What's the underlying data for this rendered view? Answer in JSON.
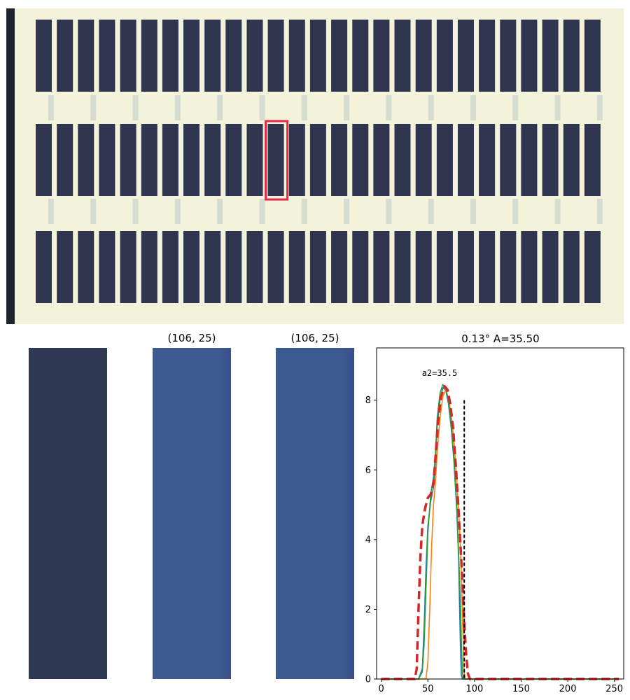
{
  "scan": {
    "plate_color": "#f3f2da",
    "well_color": "#2f344f",
    "selection_color": "#e8264a",
    "selection": {
      "row": 2,
      "column": 12
    },
    "rows": 3,
    "columns": 27
  },
  "panels": {
    "crop_raw": {
      "color": "#2e3853"
    },
    "crop_a": {
      "title": "(106, 25)",
      "color": "#3d5b8f"
    },
    "crop_b": {
      "title": "(106, 25)",
      "color": "#3b5a8e"
    }
  },
  "chart_data": {
    "type": "line",
    "title": "0.13° A=35.50",
    "annotation": "a2=35.5",
    "xlim": [
      -5,
      260
    ],
    "ylim": [
      0,
      9.5
    ],
    "xticks": [
      0,
      50,
      100,
      150,
      200,
      250
    ],
    "yticks": [
      0,
      2,
      4,
      6,
      8
    ],
    "vline": {
      "x": 89,
      "y_top": 8.0,
      "color": "#000000",
      "style": "dashed"
    },
    "series": [
      {
        "color": "#1f77b4",
        "style": "solid",
        "points": [
          [
            0,
            0
          ],
          [
            40,
            0
          ],
          [
            44,
            0.3
          ],
          [
            46,
            1.5
          ],
          [
            48,
            3.2
          ],
          [
            50,
            4.4
          ],
          [
            53,
            5.1
          ],
          [
            56,
            5.5
          ],
          [
            58,
            6.2
          ],
          [
            60,
            7.3
          ],
          [
            63,
            8.0
          ],
          [
            66,
            8.35
          ],
          [
            69,
            8.3
          ],
          [
            72,
            7.9
          ],
          [
            75,
            7.2
          ],
          [
            78,
            6.2
          ],
          [
            81,
            4.8
          ],
          [
            83,
            3.4
          ],
          [
            84,
            2.0
          ],
          [
            85,
            0.8
          ],
          [
            86,
            0.1
          ],
          [
            87,
            0
          ],
          [
            255,
            0
          ]
        ]
      },
      {
        "color": "#ff7f0e",
        "style": "solid",
        "points": [
          [
            0,
            0
          ],
          [
            48,
            0
          ],
          [
            50,
            0.5
          ],
          [
            52,
            2.0
          ],
          [
            54,
            3.8
          ],
          [
            56,
            5.0
          ],
          [
            58,
            5.6
          ],
          [
            60,
            6.5
          ],
          [
            63,
            7.5
          ],
          [
            66,
            8.1
          ],
          [
            69,
            8.3
          ],
          [
            72,
            8.05
          ],
          [
            75,
            7.6
          ],
          [
            78,
            6.8
          ],
          [
            81,
            5.7
          ],
          [
            84,
            4.3
          ],
          [
            86,
            3.0
          ],
          [
            87,
            1.9
          ],
          [
            88,
            0.9
          ],
          [
            89,
            0.2
          ],
          [
            90,
            0
          ],
          [
            255,
            0
          ]
        ]
      },
      {
        "color": "#2ca02c",
        "style": "solid",
        "points": [
          [
            0,
            0
          ],
          [
            40,
            0
          ],
          [
            44,
            0.2
          ],
          [
            46,
            1.0
          ],
          [
            48,
            2.6
          ],
          [
            50,
            4.2
          ],
          [
            53,
            5.3
          ],
          [
            56,
            5.8
          ],
          [
            58,
            6.4
          ],
          [
            60,
            7.5
          ],
          [
            63,
            8.2
          ],
          [
            66,
            8.45
          ],
          [
            69,
            8.35
          ],
          [
            72,
            8.0
          ],
          [
            75,
            7.3
          ],
          [
            78,
            6.3
          ],
          [
            81,
            5.0
          ],
          [
            83,
            3.6
          ],
          [
            85,
            2.2
          ],
          [
            86,
            1.0
          ],
          [
            87,
            0.2
          ],
          [
            88,
            0
          ],
          [
            255,
            0
          ]
        ]
      },
      {
        "color": "#d62728",
        "style": "dashed",
        "points": [
          [
            0,
            0
          ],
          [
            36,
            0
          ],
          [
            38,
            0.3
          ],
          [
            40,
            2.0
          ],
          [
            42,
            3.5
          ],
          [
            44,
            4.4
          ],
          [
            47,
            4.9
          ],
          [
            50,
            5.2
          ],
          [
            53,
            5.3
          ],
          [
            56,
            5.6
          ],
          [
            58,
            6.3
          ],
          [
            61,
            7.4
          ],
          [
            64,
            8.1
          ],
          [
            68,
            8.4
          ],
          [
            71,
            8.3
          ],
          [
            74,
            7.9
          ],
          [
            77,
            7.2
          ],
          [
            80,
            6.1
          ],
          [
            83,
            4.8
          ],
          [
            85,
            3.8
          ],
          [
            87,
            2.8
          ],
          [
            89,
            1.6
          ],
          [
            91,
            0.7
          ],
          [
            93,
            0.15
          ],
          [
            95,
            0
          ],
          [
            255,
            0
          ]
        ]
      }
    ]
  }
}
